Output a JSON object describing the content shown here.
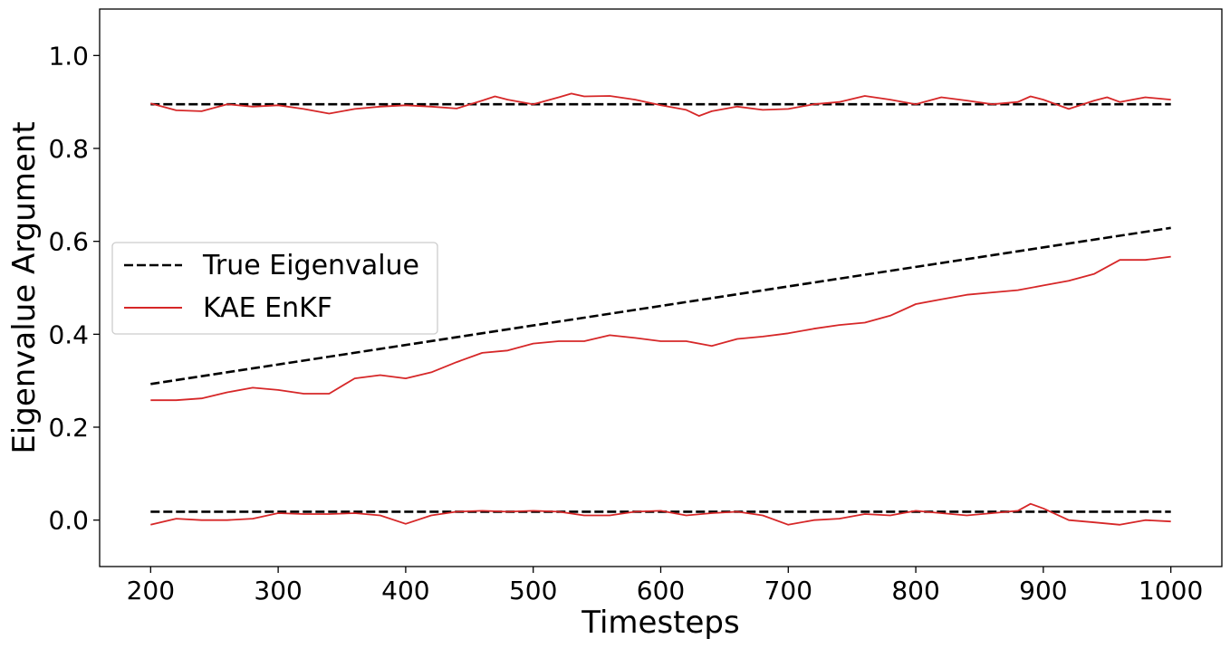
{
  "chart_data": {
    "type": "line",
    "title": "",
    "xlabel": "Timesteps",
    "ylabel": "Eigenvalue Argument",
    "xlim": [
      160,
      1040
    ],
    "ylim": [
      -0.1,
      1.1
    ],
    "xticks": [
      200,
      300,
      400,
      500,
      600,
      700,
      800,
      900,
      1000
    ],
    "xtick_labels": [
      "200",
      "300",
      "400",
      "500",
      "600",
      "700",
      "800",
      "900",
      "1000"
    ],
    "yticks": [
      0.0,
      0.2,
      0.4,
      0.6,
      0.8,
      1.0
    ],
    "ytick_labels": [
      "0.0",
      "0.2",
      "0.4",
      "0.6",
      "0.8",
      "1.0"
    ],
    "grid": false,
    "legend_position": "center-left",
    "legend": [
      {
        "label": "True Eigenvalue",
        "style": "dashed",
        "color": "#000000"
      },
      {
        "label": "KAE EnKF",
        "style": "solid",
        "color": "#d62728"
      }
    ],
    "series": [
      {
        "legend": "True Eigenvalue",
        "color": "#000000",
        "dash": true,
        "x": [
          200,
          1000
        ],
        "y": [
          0.895,
          0.895
        ]
      },
      {
        "legend": "True Eigenvalue",
        "color": "#000000",
        "dash": true,
        "x": [
          200,
          1000
        ],
        "y": [
          0.293,
          0.629
        ]
      },
      {
        "legend": "True Eigenvalue",
        "color": "#000000",
        "dash": true,
        "x": [
          200,
          1000
        ],
        "y": [
          0.018,
          0.018
        ]
      },
      {
        "legend": "KAE EnKF",
        "color": "#d62728",
        "dash": false,
        "x": [
          200,
          220,
          240,
          260,
          280,
          300,
          320,
          340,
          360,
          380,
          400,
          420,
          440,
          460,
          470,
          480,
          500,
          520,
          530,
          540,
          560,
          580,
          600,
          620,
          630,
          640,
          660,
          680,
          700,
          720,
          740,
          760,
          780,
          800,
          820,
          840,
          860,
          880,
          890,
          900,
          920,
          940,
          950,
          960,
          980,
          1000
        ],
        "y": [
          0.897,
          0.882,
          0.88,
          0.895,
          0.89,
          0.893,
          0.885,
          0.875,
          0.885,
          0.89,
          0.893,
          0.89,
          0.886,
          0.903,
          0.912,
          0.905,
          0.895,
          0.91,
          0.918,
          0.912,
          0.913,
          0.905,
          0.893,
          0.883,
          0.87,
          0.88,
          0.89,
          0.883,
          0.885,
          0.895,
          0.9,
          0.913,
          0.905,
          0.895,
          0.91,
          0.903,
          0.895,
          0.9,
          0.912,
          0.905,
          0.885,
          0.903,
          0.91,
          0.9,
          0.91,
          0.905
        ]
      },
      {
        "legend": "KAE EnKF",
        "color": "#d62728",
        "dash": false,
        "x": [
          200,
          220,
          240,
          260,
          280,
          300,
          320,
          340,
          360,
          380,
          400,
          420,
          440,
          460,
          480,
          500,
          520,
          540,
          560,
          580,
          600,
          620,
          640,
          660,
          680,
          700,
          720,
          740,
          760,
          780,
          800,
          820,
          840,
          860,
          880,
          900,
          920,
          940,
          960,
          980,
          1000
        ],
        "y": [
          0.258,
          0.258,
          0.262,
          0.275,
          0.285,
          0.28,
          0.272,
          0.272,
          0.305,
          0.312,
          0.305,
          0.318,
          0.34,
          0.36,
          0.365,
          0.38,
          0.385,
          0.385,
          0.398,
          0.392,
          0.385,
          0.385,
          0.375,
          0.39,
          0.395,
          0.402,
          0.412,
          0.42,
          0.425,
          0.44,
          0.465,
          0.475,
          0.485,
          0.49,
          0.495,
          0.505,
          0.515,
          0.53,
          0.56,
          0.56,
          0.567
        ]
      },
      {
        "legend": "KAE EnKF",
        "color": "#d62728",
        "dash": false,
        "x": [
          200,
          220,
          240,
          260,
          280,
          300,
          320,
          340,
          360,
          380,
          400,
          420,
          440,
          460,
          480,
          500,
          520,
          540,
          560,
          580,
          600,
          620,
          640,
          660,
          680,
          700,
          720,
          740,
          760,
          780,
          800,
          820,
          840,
          860,
          880,
          890,
          900,
          920,
          940,
          960,
          980,
          1000
        ],
        "y": [
          -0.01,
          0.003,
          0.0,
          0.0,
          0.003,
          0.015,
          0.013,
          0.013,
          0.015,
          0.01,
          -0.008,
          0.01,
          0.018,
          0.02,
          0.018,
          0.02,
          0.018,
          0.01,
          0.01,
          0.018,
          0.02,
          0.01,
          0.015,
          0.018,
          0.01,
          -0.01,
          0.0,
          0.003,
          0.013,
          0.01,
          0.02,
          0.015,
          0.01,
          0.015,
          0.02,
          0.035,
          0.025,
          0.0,
          -0.005,
          -0.01,
          0.0,
          -0.003
        ]
      }
    ]
  }
}
